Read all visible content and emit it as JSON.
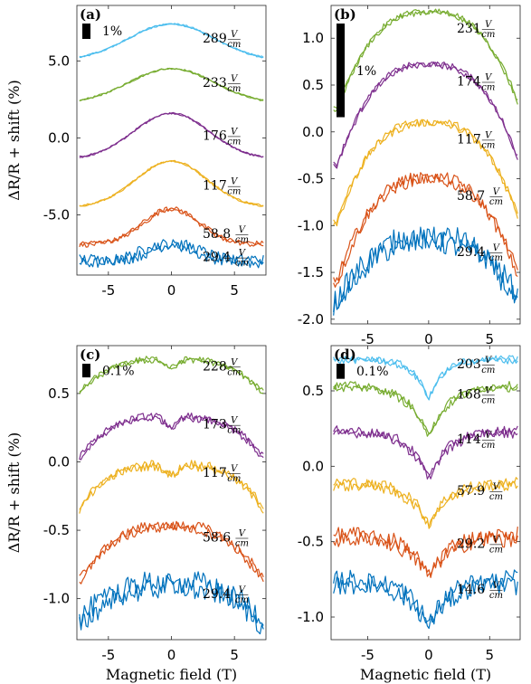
{
  "figure": {
    "ylabel": "ΔR/R + shift (%)",
    "xlabel": "Magnetic field (T)"
  },
  "units": {
    "numerator": "V",
    "denominator": "cm"
  },
  "colors": {
    "blue": "#0072bd",
    "orange": "#d95319",
    "yellow": "#edb120",
    "purple": "#7e2f8e",
    "green": "#77ac30",
    "cyan": "#4dbeee"
  },
  "chart_data": [
    {
      "type": "line",
      "panel": "(a)",
      "title": "",
      "xlim": [
        -7.5,
        7.5
      ],
      "ylim": [
        -8.9,
        8.6
      ],
      "x_ticks": [
        -5,
        0,
        5
      ],
      "y_ticks": [
        -5.0,
        0.0,
        5.0
      ],
      "y_tick_labels": [
        "-5.0",
        "0.0",
        "5.0"
      ],
      "x_tick_labels": [
        "-5",
        "0",
        "5"
      ],
      "scale_bar": {
        "label": "1%",
        "height": 1.0
      },
      "show_xlabel": false,
      "show_ylabel": true,
      "series": [
        {
          "name": "289",
          "color": "#4dbeee",
          "peak": 7.4,
          "base": 5.0,
          "shape": "peak",
          "width": 3.4,
          "noise": 0.05
        },
        {
          "name": "233",
          "color": "#77ac30",
          "peak": 4.5,
          "base": 2.2,
          "shape": "peak",
          "width": 3.4,
          "noise": 0.05
        },
        {
          "name": "176",
          "color": "#7e2f8e",
          "peak": 1.6,
          "base": -1.4,
          "shape": "peak",
          "width": 3.0,
          "noise": 0.05
        },
        {
          "name": "117",
          "color": "#edb120",
          "peak": -1.5,
          "base": -4.5,
          "shape": "peak",
          "width": 2.8,
          "noise": 0.06
        },
        {
          "name": "58.8",
          "color": "#d95319",
          "peak": -4.6,
          "base": -6.9,
          "shape": "peak",
          "width": 2.2,
          "noise": 0.15
        },
        {
          "name": "29.4",
          "color": "#0072bd",
          "peak": -6.9,
          "base": -8.0,
          "shape": "peak",
          "width": 2.0,
          "noise": 0.35
        }
      ]
    },
    {
      "type": "line",
      "panel": "(b)",
      "title": "",
      "xlim": [
        -8,
        7.5
      ],
      "ylim": [
        -2.05,
        1.35
      ],
      "x_ticks": [
        -5,
        0,
        5
      ],
      "y_ticks": [
        -2.0,
        -1.5,
        -1.0,
        -0.5,
        0.0,
        0.5,
        1.0
      ],
      "y_tick_labels": [
        "-2.0",
        "-1.5",
        "-1.0",
        "-0.5",
        "0.0",
        "0.5",
        "1.0"
      ],
      "x_tick_labels": [
        "-5",
        "0",
        "5"
      ],
      "scale_bar": {
        "label": "1%",
        "height": 1.0
      },
      "show_xlabel": false,
      "show_ylabel": false,
      "series": [
        {
          "name": "231",
          "color": "#77ac30",
          "peak": 1.28,
          "base": 0.25,
          "shape": "plateau",
          "width": 5.5,
          "noise": 0.03
        },
        {
          "name": "174",
          "color": "#7e2f8e",
          "peak": 0.72,
          "base": -0.35,
          "shape": "plateau",
          "width": 5.5,
          "noise": 0.03
        },
        {
          "name": "117",
          "color": "#edb120",
          "peak": 0.1,
          "base": -0.95,
          "shape": "plateau",
          "width": 5.5,
          "noise": 0.04
        },
        {
          "name": "58.7",
          "color": "#d95319",
          "peak": -0.5,
          "base": -1.6,
          "shape": "plateau",
          "width": 5.5,
          "noise": 0.06
        },
        {
          "name": "29.4",
          "color": "#0072bd",
          "peak": -1.15,
          "base": -1.85,
          "shape": "plateau",
          "width": 5.5,
          "noise": 0.12
        }
      ]
    },
    {
      "type": "line",
      "panel": "(c)",
      "title": "",
      "xlim": [
        -7.5,
        7.5
      ],
      "ylim": [
        -1.3,
        0.85
      ],
      "x_ticks": [
        -5,
        0,
        5
      ],
      "y_ticks": [
        -1.0,
        -0.5,
        0.0,
        0.5
      ],
      "y_tick_labels": [
        "-1.0",
        "-0.5",
        "0.0",
        "0.5"
      ],
      "x_tick_labels": [
        "-5",
        "0",
        "5"
      ],
      "scale_bar": {
        "label": "0.1%",
        "height": 0.1
      },
      "show_xlabel": true,
      "show_ylabel": true,
      "series": [
        {
          "name": "228",
          "color": "#77ac30",
          "peak": 0.75,
          "base": 0.48,
          "shape": "mhump",
          "width": 5.0,
          "noise": 0.02
        },
        {
          "name": "173",
          "color": "#7e2f8e",
          "peak": 0.33,
          "base": 0.0,
          "shape": "mhump",
          "width": 5.0,
          "noise": 0.025
        },
        {
          "name": "117",
          "color": "#edb120",
          "peak": -0.02,
          "base": -0.37,
          "shape": "mhump",
          "width": 5.0,
          "noise": 0.03
        },
        {
          "name": "58.6",
          "color": "#d95319",
          "peak": -0.47,
          "base": -0.9,
          "shape": "plateau",
          "width": 5.5,
          "noise": 0.035
        },
        {
          "name": "29.4",
          "color": "#0072bd",
          "peak": -0.9,
          "base": -1.2,
          "shape": "plateau",
          "width": 5.5,
          "noise": 0.08
        }
      ]
    },
    {
      "type": "line",
      "panel": "(d)",
      "title": "",
      "xlim": [
        -8,
        7.5
      ],
      "ylim": [
        -1.15,
        0.8
      ],
      "x_ticks": [
        -5,
        0,
        5
      ],
      "y_ticks": [
        -1.0,
        -0.5,
        0.0,
        0.5
      ],
      "y_tick_labels": [
        "-1.0",
        "-0.5",
        "0.0",
        "0.5"
      ],
      "x_tick_labels": [
        "-5",
        "0",
        "5"
      ],
      "scale_bar": {
        "label": "0.1%",
        "height": 0.1
      },
      "show_xlabel": true,
      "show_ylabel": false,
      "series": [
        {
          "name": "203",
          "color": "#4dbeee",
          "peak": 0.72,
          "base": 0.43,
          "shape": "dip",
          "width": 2.4,
          "noise": 0.02
        },
        {
          "name": "168",
          "color": "#77ac30",
          "peak": 0.55,
          "base": 0.18,
          "shape": "dip",
          "width": 3.2,
          "noise": 0.025
        },
        {
          "name": "114",
          "color": "#7e2f8e",
          "peak": 0.25,
          "base": -0.1,
          "shape": "dip",
          "width": 3.2,
          "noise": 0.03
        },
        {
          "name": "57.9",
          "color": "#edb120",
          "peak": -0.1,
          "base": -0.4,
          "shape": "dip",
          "width": 3.2,
          "noise": 0.035
        },
        {
          "name": "29.2",
          "color": "#d95319",
          "peak": -0.45,
          "base": -0.75,
          "shape": "dip",
          "width": 3.2,
          "noise": 0.05
        },
        {
          "name": "14.6",
          "color": "#0072bd",
          "peak": -0.75,
          "base": -1.08,
          "shape": "dip",
          "width": 3.2,
          "noise": 0.06
        }
      ]
    }
  ]
}
